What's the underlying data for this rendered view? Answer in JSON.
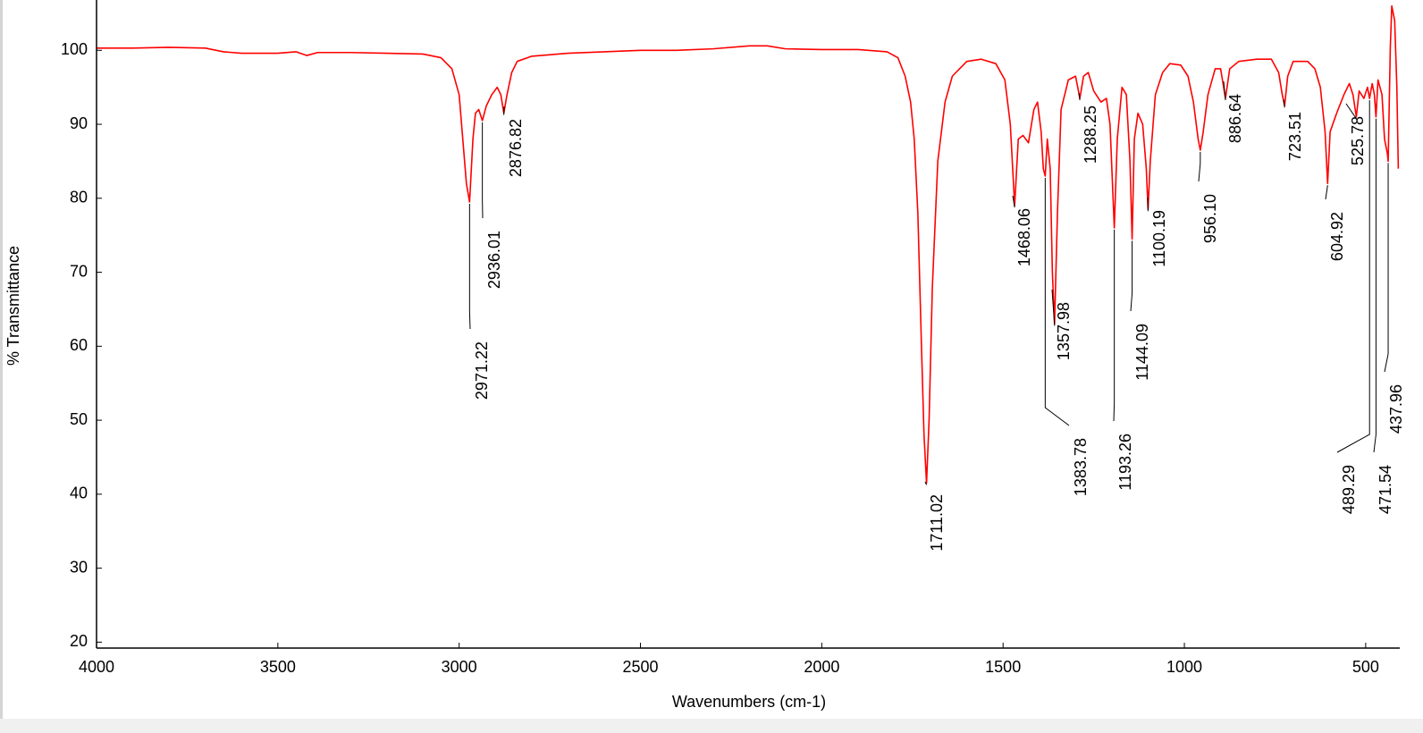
{
  "chart_data": {
    "type": "line",
    "xlabel": "Wavenumbers (cm-1)",
    "ylabel": "% Transmittance",
    "xlim": [
      4000,
      406
    ],
    "ylim": [
      19.2,
      106.8
    ],
    "xticks": [
      4000,
      3500,
      3000,
      2500,
      2000,
      1500,
      1000,
      500
    ],
    "yticks": [
      20,
      30,
      40,
      50,
      60,
      70,
      80,
      90,
      100
    ],
    "series": [
      {
        "color": "#ff0000",
        "x": [
          4000,
          3900,
          3800,
          3700,
          3650,
          3600,
          3500,
          3450,
          3420,
          3390,
          3300,
          3200,
          3100,
          3050,
          3020,
          3000,
          2990,
          2980,
          2971.22,
          2962,
          2955,
          2946,
          2936.01,
          2925,
          2910,
          2895,
          2885,
          2876.82,
          2868,
          2855,
          2840,
          2800,
          2700,
          2600,
          2500,
          2400,
          2300,
          2200,
          2150,
          2100,
          2000,
          1900,
          1820,
          1790,
          1770,
          1755,
          1745,
          1735,
          1725,
          1718,
          1711.02,
          1704,
          1695,
          1680,
          1660,
          1640,
          1600,
          1560,
          1520,
          1495,
          1480,
          1468.06,
          1458,
          1445,
          1430,
          1415,
          1405,
          1395,
          1389,
          1383.78,
          1378,
          1370,
          1364,
          1357.98,
          1350,
          1340,
          1320,
          1300,
          1288.25,
          1278,
          1265,
          1250,
          1230,
          1215,
          1205,
          1193.26,
          1185,
          1172,
          1160,
          1150,
          1144.09,
          1138,
          1128,
          1115,
          1105,
          1100.19,
          1094,
          1080,
          1060,
          1040,
          1010,
          990,
          975,
          962,
          956.1,
          948,
          935,
          915,
          900,
          886.64,
          875,
          850,
          800,
          760,
          740,
          730,
          723.51,
          715,
          700,
          660,
          640,
          625,
          612,
          604.92,
          598,
          580,
          560,
          545,
          535,
          525.78,
          518,
          505,
          495,
          489.29,
          482,
          476,
          471.54,
          466,
          455,
          448,
          440,
          437.96,
          432,
          428,
          420,
          414,
          410
        ],
        "values": [
          100.3,
          100.3,
          100.4,
          100.3,
          99.8,
          99.6,
          99.6,
          99.8,
          99.3,
          99.7,
          99.7,
          99.6,
          99.5,
          99.0,
          97.5,
          94,
          88,
          82,
          79.5,
          88,
          91.5,
          92,
          90.5,
          92.5,
          94,
          95,
          94,
          91.5,
          94,
          97,
          98.5,
          99.2,
          99.6,
          99.8,
          100,
          100,
          100.2,
          100.6,
          100.6,
          100.2,
          100.1,
          100.1,
          99.8,
          99,
          96.5,
          93,
          88,
          78,
          60,
          48,
          41.5,
          50,
          68,
          85,
          93,
          96.5,
          98.5,
          98.8,
          98.2,
          96,
          90,
          79,
          88,
          88.5,
          87.5,
          92,
          93,
          89,
          84,
          83,
          88,
          84,
          70,
          63,
          78,
          92,
          96,
          96.5,
          93.5,
          96.5,
          97,
          94.5,
          93,
          93.5,
          90,
          76,
          88,
          95,
          94,
          85,
          74.5,
          88,
          91.5,
          90,
          84,
          78.5,
          85,
          94,
          97,
          98.2,
          98,
          96.5,
          93,
          88,
          86.5,
          89,
          94,
          97.5,
          97.5,
          93.5,
          97.5,
          98.5,
          98.8,
          98.8,
          97,
          94,
          92.5,
          96.5,
          98.5,
          98.5,
          97.5,
          95,
          89,
          82,
          89,
          91.5,
          94,
          95.5,
          94,
          91,
          94.5,
          93.5,
          95,
          93.5,
          95.5,
          94,
          91,
          96,
          94,
          88,
          86,
          85,
          100.5,
          106,
          104,
          95,
          84
        ]
      }
    ],
    "peaks": [
      {
        "label": "2971.22",
        "x": 2971.22,
        "y": 79.5
      },
      {
        "label": "2936.01",
        "x": 2936.01,
        "y": 90.5
      },
      {
        "label": "2876.82",
        "x": 2876.82,
        "y": 91.5
      },
      {
        "label": "1711.02",
        "x": 1711.02,
        "y": 41.5
      },
      {
        "label": "1468.06",
        "x": 1468.06,
        "y": 79
      },
      {
        "label": "1383.78",
        "x": 1383.78,
        "y": 83
      },
      {
        "label": "1357.98",
        "x": 1357.98,
        "y": 63
      },
      {
        "label": "1288.25",
        "x": 1288.25,
        "y": 93.5
      },
      {
        "label": "1193.26",
        "x": 1193.26,
        "y": 76
      },
      {
        "label": "1144.09",
        "x": 1144.09,
        "y": 74.5
      },
      {
        "label": "1100.19",
        "x": 1100.19,
        "y": 78.5
      },
      {
        "label": "956.10",
        "x": 956.1,
        "y": 86.5
      },
      {
        "label": "886.64",
        "x": 886.64,
        "y": 93.5
      },
      {
        "label": "723.51",
        "x": 723.51,
        "y": 92.5
      },
      {
        "label": "604.92",
        "x": 604.92,
        "y": 82
      },
      {
        "label": "525.78",
        "x": 525.78,
        "y": 91
      },
      {
        "label": "489.29",
        "x": 489.29,
        "y": 93.5
      },
      {
        "label": "471.54",
        "x": 471.54,
        "y": 91
      },
      {
        "label": "437.96",
        "x": 437.96,
        "y": 85
      }
    ]
  }
}
